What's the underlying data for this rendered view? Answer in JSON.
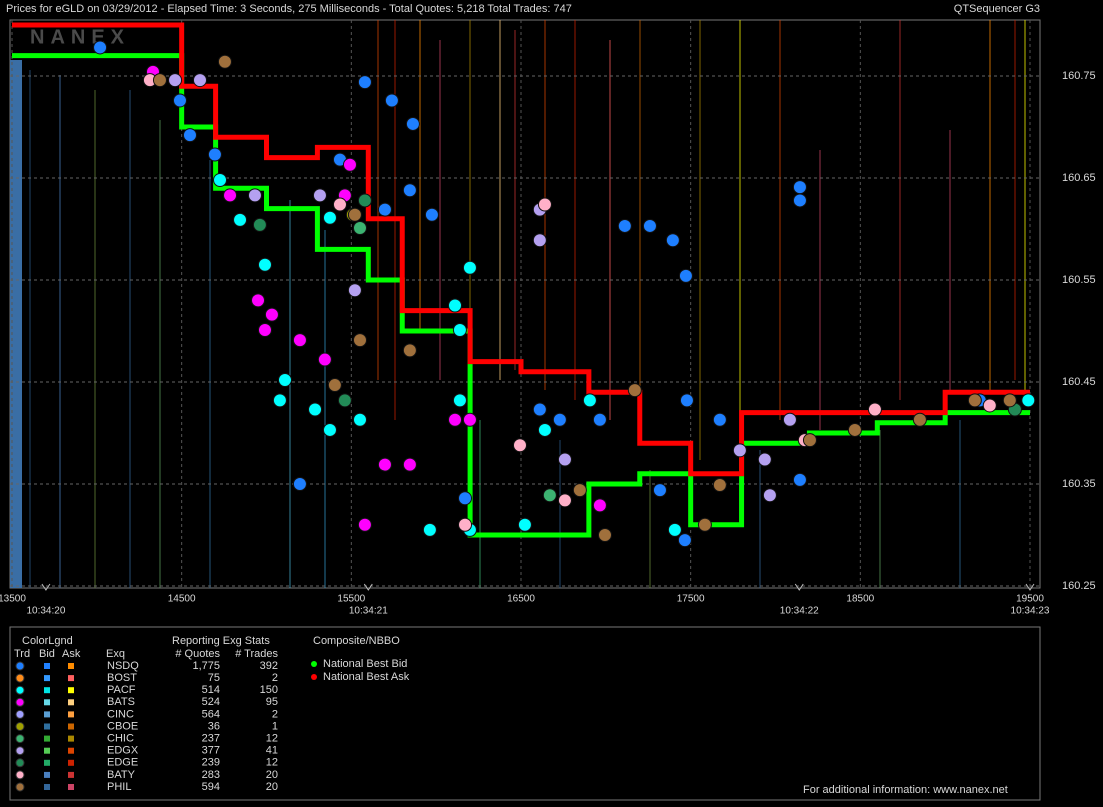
{
  "header": {
    "title": "Prices for  eGLD  on  03/29/2012  -  Elapsed Time: 3 Seconds, 275 Milliseconds  -  Total Quotes: 5,218  Total Trades: 747",
    "app": "QTSequencer G3",
    "watermark": "NANEX"
  },
  "chart_data": {
    "type": "scatter",
    "xlim": [
      13500,
      19500
    ],
    "xticks": [
      13500,
      14500,
      15500,
      16500,
      17500,
      18500,
      19500
    ],
    "x2ticks": [
      {
        "value": 13700,
        "label": "10:34:20"
      },
      {
        "value": 15600,
        "label": "10:34:21"
      },
      {
        "value": 18140,
        "label": "10:34:22"
      },
      {
        "value": 19500,
        "label": "10:34:23"
      }
    ],
    "ylim": [
      160.25,
      160.8
    ],
    "yticks": [
      160.25,
      160.35,
      160.45,
      160.55,
      160.65,
      160.75
    ],
    "grid": true,
    "series": [
      {
        "name": "NSDQ",
        "color": "#1e7fff",
        "bid_color": "#2080ff",
        "ask_color": "#ff8c00",
        "quotes": "1,775",
        "trades": "392",
        "x": [
          14019,
          14490,
          14549,
          14696,
          15580,
          15739,
          15863,
          15433,
          15845,
          15698,
          15975,
          17112,
          17260,
          17395,
          17472,
          17478,
          18144,
          18144,
          17672,
          18144,
          16965,
          16611,
          15197,
          16170,
          16729,
          19204,
          17319,
          17466
        ],
        "values": [
          160.778,
          160.726,
          160.692,
          160.673,
          160.744,
          160.726,
          160.703,
          160.668,
          160.638,
          160.619,
          160.614,
          160.603,
          160.603,
          160.589,
          160.554,
          160.432,
          160.641,
          160.628,
          160.413,
          160.354,
          160.413,
          160.423,
          160.35,
          160.336,
          160.413,
          160.432,
          160.344,
          160.295
        ]
      },
      {
        "name": "BOST",
        "color": "#ff8c1a",
        "bid_color": "#3399ff",
        "ask_color": "#ff6060",
        "quotes": "75",
        "trades": "2",
        "x": [],
        "values": []
      },
      {
        "name": "PACF",
        "color": "#00ffff",
        "bid_color": "#00e5e5",
        "ask_color": "#ffff00",
        "quotes": "514",
        "trades": "150",
        "x": [
          14844,
          14991,
          15079,
          15286,
          15374,
          16140,
          16199,
          16111,
          15963,
          16199,
          16523,
          15374,
          15109,
          14726,
          19490,
          17407,
          16906,
          16641,
          16140,
          15551
        ],
        "values": [
          160.609,
          160.565,
          160.432,
          160.423,
          160.403,
          160.501,
          160.562,
          160.525,
          160.305,
          160.305,
          160.31,
          160.611,
          160.452,
          160.648,
          160.432,
          160.305,
          160.432,
          160.403,
          160.432,
          160.413
        ]
      },
      {
        "name": "BATS",
        "color": "#ff00ff",
        "bid_color": "#66d9e8",
        "ask_color": "#ffd080",
        "quotes": "524",
        "trades": "95",
        "x": [
          14331,
          14785,
          14950,
          15032,
          14991,
          15197,
          15492,
          15462,
          15698,
          15845,
          15580,
          16111,
          16965,
          16199,
          15344
        ],
        "values": [
          160.754,
          160.633,
          160.53,
          160.516,
          160.501,
          160.491,
          160.663,
          160.633,
          160.369,
          160.369,
          160.31,
          160.413,
          160.329,
          160.413,
          160.472
        ]
      },
      {
        "name": "CINC",
        "color": "#a0a0ff",
        "bid_color": "#5a9fd4",
        "ask_color": "#ffa040",
        "quotes": "564",
        "trades": "2",
        "x": [],
        "values": []
      },
      {
        "name": "CBOE",
        "color": "#a0a000",
        "bid_color": "#2f6f9f",
        "ask_color": "#cc6600",
        "quotes": "36",
        "trades": "1",
        "x": [
          15509
        ],
        "values": [
          160.614
        ]
      },
      {
        "name": "CHIC",
        "color": "#3cb371",
        "bid_color": "#33aa33",
        "ask_color": "#aa8800",
        "quotes": "237",
        "trades": "12",
        "x": [
          15551,
          16670
        ],
        "values": [
          160.601,
          160.339
        ]
      },
      {
        "name": "EDGX",
        "color": "#b4a0f0",
        "bid_color": "#55cc55",
        "ask_color": "#dd4400",
        "quotes": "377",
        "trades": "41",
        "x": [
          14461,
          14608,
          14932,
          15315,
          15521,
          16611,
          16611,
          16759,
          17937,
          17967,
          18085,
          17790
        ],
        "values": [
          160.746,
          160.746,
          160.633,
          160.633,
          160.54,
          160.619,
          160.589,
          160.374,
          160.374,
          160.339,
          160.413,
          160.383
        ]
      },
      {
        "name": "EDGE",
        "color": "#228b57",
        "bid_color": "#22aa66",
        "ask_color": "#cc2200",
        "quotes": "239",
        "trades": "12",
        "x": [
          14961,
          15462,
          15580,
          19411
        ],
        "values": [
          160.604,
          160.432,
          160.628,
          160.423
        ]
      },
      {
        "name": "BATY",
        "color": "#ffb0c8",
        "bid_color": "#4a7fbf",
        "ask_color": "#cc3333",
        "quotes": "283",
        "trades": "20",
        "x": [
          14313,
          15433,
          16170,
          16494,
          16759,
          18173,
          18586,
          19263,
          16641
        ],
        "values": [
          160.746,
          160.624,
          160.31,
          160.388,
          160.334,
          160.393,
          160.423,
          160.427,
          160.624
        ]
      },
      {
        "name": "PHIL",
        "color": "#a0703c",
        "bid_color": "#336699",
        "ask_color": "#cc4466",
        "quotes": "594",
        "trades": "20",
        "x": [
          14372,
          14755,
          15521,
          15551,
          15845,
          15403,
          16847,
          16995,
          17171,
          17672,
          17584,
          18203,
          18468,
          18851,
          19175,
          19381
        ],
        "values": [
          160.746,
          160.764,
          160.614,
          160.491,
          160.481,
          160.447,
          160.344,
          160.3,
          160.442,
          160.349,
          160.31,
          160.393,
          160.403,
          160.413,
          160.432,
          160.432
        ]
      }
    ],
    "nbbo": [
      {
        "name": "National Best Bid",
        "color": "#00ff00",
        "x": [
          13500,
          14000,
          14500,
          14700,
          15000,
          15300,
          15600,
          15800,
          16200,
          16500,
          16900,
          17200,
          17500,
          17800,
          18200,
          18600,
          19000,
          19500
        ],
        "values": [
          160.77,
          160.77,
          160.7,
          160.64,
          160.62,
          160.58,
          160.55,
          160.5,
          160.3,
          160.3,
          160.35,
          160.36,
          160.31,
          160.39,
          160.4,
          160.41,
          160.42,
          160.42
        ]
      },
      {
        "name": "National Best Ask",
        "color": "#ff0000",
        "x": [
          13500,
          14000,
          14500,
          14700,
          15000,
          15300,
          15600,
          15800,
          16200,
          16500,
          16900,
          17200,
          17500,
          17800,
          18200,
          18600,
          19000,
          19500
        ],
        "values": [
          160.8,
          160.8,
          160.74,
          160.69,
          160.67,
          160.68,
          160.61,
          160.52,
          160.47,
          160.46,
          160.44,
          160.39,
          160.36,
          160.42,
          160.42,
          160.42,
          160.44,
          160.44
        ]
      }
    ]
  },
  "legend_panel": {
    "title": "ColorLgnd",
    "col_trd": "Trd",
    "col_bid": "Bid",
    "col_ask": "Ask",
    "col_exch": "Exq",
    "stats_title": "Reporting Exg Stats",
    "col_quotes": "# Quotes",
    "col_trades": "# Trades",
    "nbbo_title": "Composite/NBBO"
  },
  "footer": "For additional information: www.nanex.net"
}
